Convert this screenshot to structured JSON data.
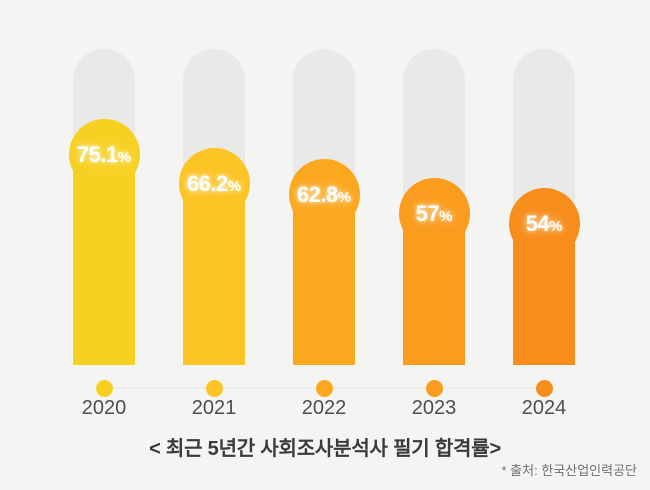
{
  "page": {
    "background_color": "#F4F4F2"
  },
  "chart_data": {
    "type": "bar",
    "title": "< 최근 5년간 사회조사분석사 필기 합격률>",
    "source_note": "* 출처: 한국산업인력공단",
    "categories": [
      "2020",
      "2021",
      "2022",
      "2023",
      "2024"
    ],
    "values": [
      75.1,
      66.2,
      62.8,
      57,
      54
    ],
    "ylim": [
      0,
      100
    ],
    "grid": false,
    "legend": "none",
    "track_color": "#E9E9E7",
    "timeline_line_color": "#EBEBE9",
    "bars": [
      {
        "year": "2020",
        "value": 75.1,
        "label": "75.1",
        "percent_sign": "%",
        "color": "#F7D122"
      },
      {
        "year": "2021",
        "value": 66.2,
        "label": "66.2",
        "percent_sign": "%",
        "color": "#FDC425"
      },
      {
        "year": "2022",
        "value": 62.8,
        "label": "62.8",
        "percent_sign": "%",
        "color": "#FBA81F"
      },
      {
        "year": "2023",
        "value": 57,
        "label": "57",
        "percent_sign": "%",
        "color": "#FA9D1E"
      },
      {
        "year": "2024",
        "value": 54,
        "label": "54",
        "percent_sign": "%",
        "color": "#F78E1B"
      }
    ]
  }
}
